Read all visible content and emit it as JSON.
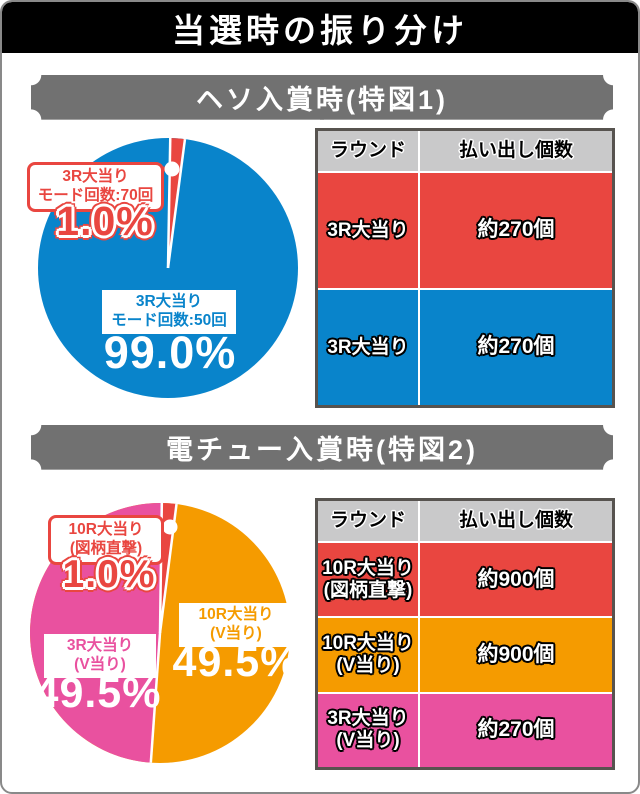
{
  "title": "当選時の振り分け",
  "colors": {
    "red": "#e94640",
    "blue": "#0984cb",
    "orange": "#f59b00",
    "pink": "#e9519f",
    "bar_gray": "#717171",
    "table_header_bg": "#c9c9ca",
    "table_border": "#57534f",
    "card_border": "#898989",
    "title_bg": "#000000"
  },
  "sections": [
    {
      "header": "ヘソ入賞時(特図1)",
      "callout": {
        "line1": "3R大当り",
        "line2": "モード回数:70回",
        "pct": "1.0%"
      },
      "main_label": {
        "line1": "3R大当り",
        "line2": "モード回数:50回",
        "pct": "99.0%"
      },
      "table": {
        "headers": [
          "ラウンド",
          "払い出し個数"
        ],
        "rows": [
          {
            "round": "3R大当り",
            "round2": "",
            "payout": "約270個",
            "color": "#e94640"
          },
          {
            "round": "3R大当り",
            "round2": "",
            "payout": "約270個",
            "color": "#0984cb"
          }
        ]
      }
    },
    {
      "header": "電チュー入賞時(特図2)",
      "callout": {
        "line1": "10R大当り",
        "line2": "(図柄直撃)",
        "pct": "1.0%"
      },
      "labels": {
        "orange": {
          "line1": "10R大当り",
          "line2": "(V当り)",
          "pct": "49.5%"
        },
        "pink": {
          "line1": "3R大当り",
          "line2": "(V当り)",
          "pct": "49.5%"
        }
      },
      "table": {
        "headers": [
          "ラウンド",
          "払い出し個数"
        ],
        "rows": [
          {
            "round": "10R大当り",
            "round2": "(図柄直撃)",
            "payout": "約900個",
            "color": "#e94640"
          },
          {
            "round": "10R大当り",
            "round2": "(V当り)",
            "payout": "約900個",
            "color": "#f59b00"
          },
          {
            "round": "3R大当り",
            "round2": "(V当り)",
            "payout": "約270個",
            "color": "#e9519f"
          }
        ]
      }
    }
  ],
  "chart_data": [
    {
      "type": "pie",
      "title": "ヘソ入賞時(特図1) 振り分け",
      "slices": [
        {
          "label": "3R大当り モード回数:70回",
          "value": 1.0,
          "color": "#e94640"
        },
        {
          "label": "3R大当り モード回数:50回",
          "value": 99.0,
          "color": "#0984cb"
        }
      ],
      "layout": {
        "start_deg": 1,
        "min_slice_deg": 6.5,
        "divider_color": "#ffffff",
        "leader_color": "#e94640",
        "leader": {
          "line": [
            [
              124,
              35
            ],
            [
              138,
              35
            ]
          ],
          "dot": [
            138,
            35
          ]
        }
      }
    },
    {
      "type": "pie",
      "title": "電チュー入賞時(特図2) 振り分け",
      "slices": [
        {
          "label": "10R大当り(図柄直撃)",
          "value": 1.0,
          "color": "#e94640"
        },
        {
          "label": "10R大当り(V当り)",
          "value": 49.5,
          "color": "#f59b00"
        },
        {
          "label": "3R大当り(V当り)",
          "value": 49.5,
          "color": "#e9519f"
        }
      ],
      "layout": {
        "start_deg": 0.8,
        "min_slice_deg": 6.5,
        "divider_color": "#ffffff",
        "leader_color": "#e94640",
        "leader": {
          "line": [
            [
              130,
              28
            ],
            [
              144,
              28
            ]
          ],
          "dot": [
            144,
            28
          ]
        }
      }
    }
  ]
}
